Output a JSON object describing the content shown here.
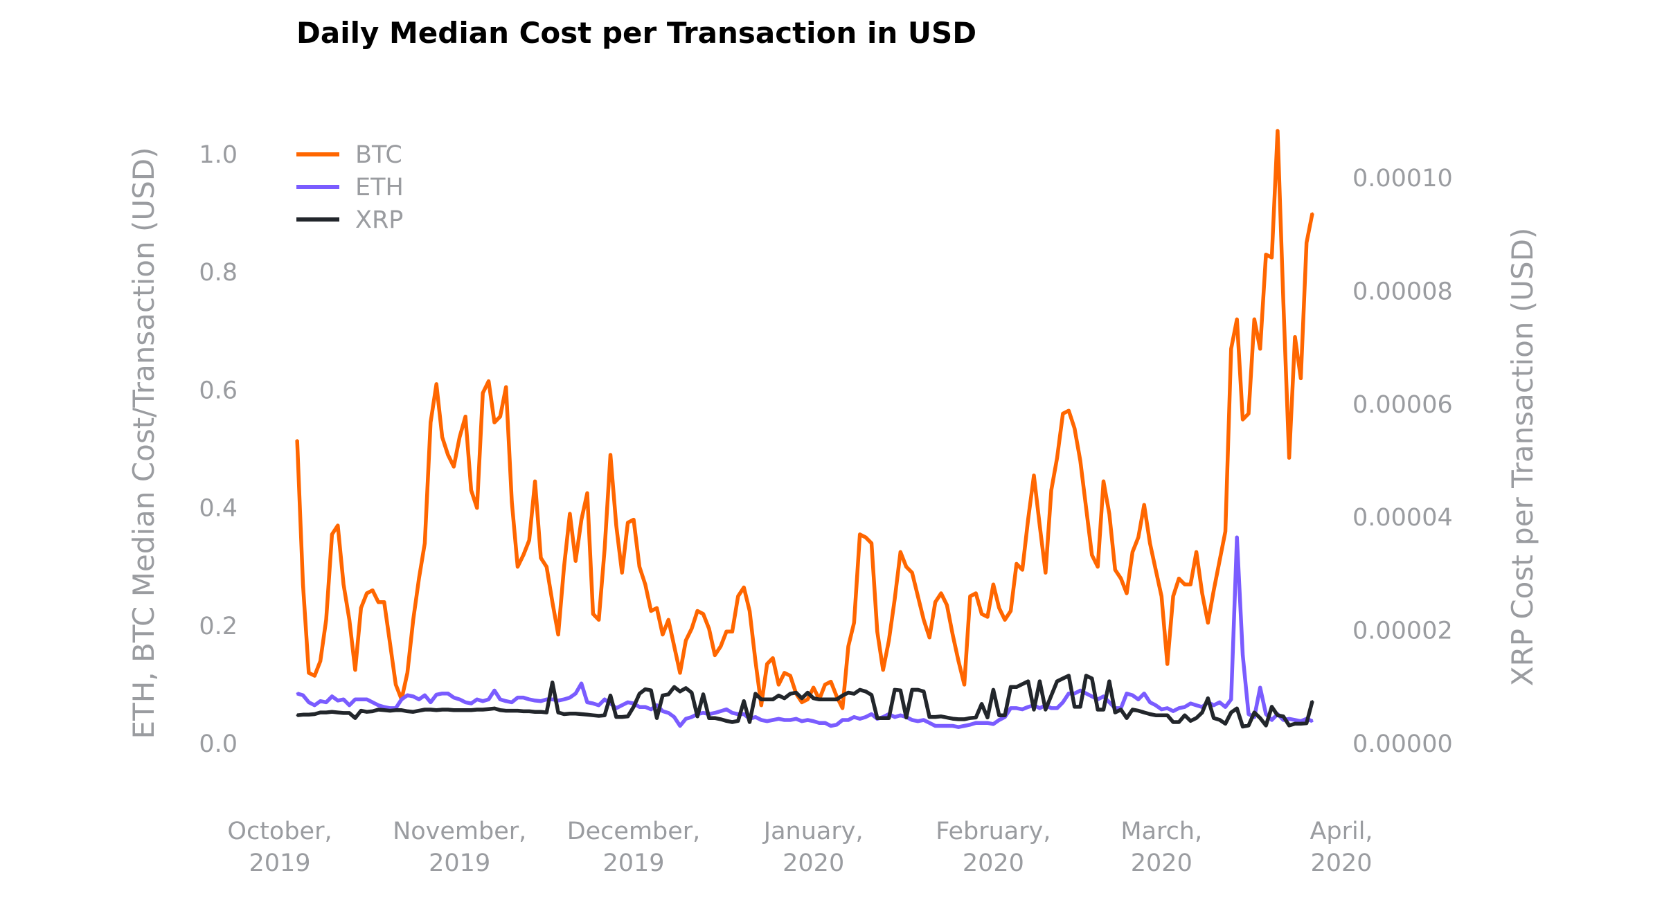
{
  "chart_data": {
    "type": "line",
    "title": "Daily Median Cost per Transaction in USD",
    "ylabel": "ETH, BTC Median Cost/Transaction (USD)",
    "y2label": "XRP Cost per Transaction (USD)",
    "ylim": [
      0,
      1.0
    ],
    "y2lim": [
      0,
      0.0001
    ],
    "xlim": [
      "2019-10-01",
      "2020-04-01"
    ],
    "grid": false,
    "legend_position": "top-left",
    "yticks": [
      "0.0",
      "0.2",
      "0.4",
      "0.6",
      "0.8",
      "1.0"
    ],
    "y2ticks": [
      "0.00000",
      "0.00002",
      "0.00004",
      "0.00006",
      "0.00008",
      "0.00010"
    ],
    "xticks": [
      {
        "date": "2019-10-01",
        "line1": "October,",
        "line2": "2019"
      },
      {
        "date": "2019-11-01",
        "line1": "November,",
        "line2": "2019"
      },
      {
        "date": "2019-12-01",
        "line1": "December,",
        "line2": "2019"
      },
      {
        "date": "2020-01-01",
        "line1": "January,",
        "line2": "2020"
      },
      {
        "date": "2020-02-01",
        "line1": "February,",
        "line2": "2020"
      },
      {
        "date": "2020-03-01",
        "line1": "March,",
        "line2": "2020"
      },
      {
        "date": "2020-04-01",
        "line1": "April,",
        "line2": "2020"
      }
    ],
    "x": [
      "2019-10-04",
      "2019-10-05",
      "2019-10-06",
      "2019-10-07",
      "2019-10-08",
      "2019-10-09",
      "2019-10-10",
      "2019-10-11",
      "2019-10-12",
      "2019-10-13",
      "2019-10-14",
      "2019-10-15",
      "2019-10-16",
      "2019-10-17",
      "2019-10-18",
      "2019-10-19",
      "2019-10-20",
      "2019-10-21",
      "2019-10-22",
      "2019-10-23",
      "2019-10-24",
      "2019-10-25",
      "2019-10-26",
      "2019-10-27",
      "2019-10-28",
      "2019-10-29",
      "2019-10-30",
      "2019-10-31",
      "2019-11-01",
      "2019-11-02",
      "2019-11-03",
      "2019-11-04",
      "2019-11-05",
      "2019-11-06",
      "2019-11-07",
      "2019-11-08",
      "2019-11-09",
      "2019-11-10",
      "2019-11-11",
      "2019-11-12",
      "2019-11-13",
      "2019-11-14",
      "2019-11-15",
      "2019-11-16",
      "2019-11-17",
      "2019-11-18",
      "2019-11-19",
      "2019-11-20",
      "2019-11-21",
      "2019-11-22",
      "2019-11-23",
      "2019-11-24",
      "2019-11-25",
      "2019-11-26",
      "2019-11-27",
      "2019-11-28",
      "2019-11-29",
      "2019-11-30",
      "2019-12-01",
      "2019-12-02",
      "2019-12-03",
      "2019-12-04",
      "2019-12-05",
      "2019-12-06",
      "2019-12-07",
      "2019-12-08",
      "2019-12-09",
      "2019-12-10",
      "2019-12-11",
      "2019-12-12",
      "2019-12-13",
      "2019-12-14",
      "2019-12-15",
      "2019-12-16",
      "2019-12-17",
      "2019-12-18",
      "2019-12-19",
      "2019-12-20",
      "2019-12-21",
      "2019-12-22",
      "2019-12-23",
      "2019-12-24",
      "2019-12-25",
      "2019-12-26",
      "2019-12-27",
      "2019-12-28",
      "2019-12-29",
      "2019-12-30",
      "2019-12-31",
      "2020-01-01",
      "2020-01-02",
      "2020-01-03",
      "2020-01-04",
      "2020-01-05",
      "2020-01-06",
      "2020-01-07",
      "2020-01-08",
      "2020-01-09",
      "2020-01-10",
      "2020-01-11",
      "2020-01-12",
      "2020-01-13",
      "2020-01-14",
      "2020-01-15",
      "2020-01-16",
      "2020-01-17",
      "2020-01-18",
      "2020-01-19",
      "2020-01-20",
      "2020-01-21",
      "2020-01-22",
      "2020-01-23",
      "2020-01-24",
      "2020-01-25",
      "2020-01-26",
      "2020-01-27",
      "2020-01-28",
      "2020-01-29",
      "2020-01-30",
      "2020-01-31",
      "2020-02-01",
      "2020-02-02",
      "2020-02-03",
      "2020-02-04",
      "2020-02-05",
      "2020-02-06",
      "2020-02-07",
      "2020-02-08",
      "2020-02-09",
      "2020-02-10",
      "2020-02-11",
      "2020-02-12",
      "2020-02-13",
      "2020-02-14",
      "2020-02-15",
      "2020-02-16",
      "2020-02-17",
      "2020-02-18",
      "2020-02-19",
      "2020-02-20",
      "2020-02-21",
      "2020-02-22",
      "2020-02-23",
      "2020-02-24",
      "2020-02-25",
      "2020-02-26",
      "2020-02-27",
      "2020-02-28",
      "2020-02-29",
      "2020-03-01",
      "2020-03-02",
      "2020-03-03",
      "2020-03-04",
      "2020-03-05",
      "2020-03-06",
      "2020-03-07",
      "2020-03-08",
      "2020-03-09",
      "2020-03-10",
      "2020-03-11",
      "2020-03-12",
      "2020-03-13",
      "2020-03-14",
      "2020-03-15",
      "2020-03-16",
      "2020-03-17",
      "2020-03-18",
      "2020-03-19",
      "2020-03-20",
      "2020-03-21",
      "2020-03-22",
      "2020-03-23",
      "2020-03-24",
      "2020-03-25",
      "2020-03-26",
      "2020-03-27"
    ],
    "series": [
      {
        "name": "BTC",
        "axis": "left",
        "color": "#ff6600",
        "values": [
          0.515,
          0.27,
          0.12,
          0.115,
          0.14,
          0.21,
          0.355,
          0.37,
          0.27,
          0.21,
          0.125,
          0.23,
          0.255,
          0.26,
          0.24,
          0.24,
          0.17,
          0.1,
          0.075,
          0.12,
          0.21,
          0.28,
          0.34,
          0.545,
          0.61,
          0.52,
          0.49,
          0.47,
          0.52,
          0.555,
          0.43,
          0.4,
          0.595,
          0.615,
          0.545,
          0.555,
          0.605,
          0.41,
          0.3,
          0.32,
          0.345,
          0.445,
          0.315,
          0.3,
          0.24,
          0.185,
          0.3,
          0.39,
          0.31,
          0.38,
          0.425,
          0.22,
          0.21,
          0.33,
          0.49,
          0.37,
          0.29,
          0.375,
          0.38,
          0.3,
          0.27,
          0.225,
          0.23,
          0.185,
          0.21,
          0.165,
          0.12,
          0.175,
          0.195,
          0.225,
          0.22,
          0.195,
          0.15,
          0.165,
          0.19,
          0.19,
          0.25,
          0.265,
          0.225,
          0.14,
          0.065,
          0.135,
          0.145,
          0.1,
          0.12,
          0.115,
          0.085,
          0.07,
          0.075,
          0.095,
          0.075,
          0.1,
          0.105,
          0.08,
          0.06,
          0.165,
          0.205,
          0.355,
          0.35,
          0.34,
          0.19,
          0.125,
          0.175,
          0.245,
          0.325,
          0.3,
          0.29,
          0.25,
          0.21,
          0.18,
          0.24,
          0.255,
          0.235,
          0.185,
          0.14,
          0.1,
          0.25,
          0.255,
          0.22,
          0.215,
          0.27,
          0.23,
          0.21,
          0.225,
          0.305,
          0.295,
          0.38,
          0.455,
          0.37,
          0.29,
          0.43,
          0.485,
          0.56,
          0.565,
          0.535,
          0.48,
          0.4,
          0.32,
          0.3,
          0.445,
          0.39,
          0.295,
          0.28,
          0.255,
          0.325,
          0.35,
          0.405,
          0.34,
          0.295,
          0.25,
          0.135,
          0.25,
          0.28,
          0.27,
          0.27,
          0.325,
          0.255,
          0.205,
          0.26,
          0.31,
          0.36,
          0.67,
          0.72,
          0.55,
          0.56,
          0.72,
          0.67,
          0.83,
          0.825,
          1.04,
          0.75,
          0.485,
          0.69,
          0.62,
          0.85,
          0.9
        ]
      },
      {
        "name": "ETH",
        "axis": "left",
        "color": "#7a5cff",
        "values": [
          0.085,
          0.082,
          0.07,
          0.065,
          0.072,
          0.07,
          0.08,
          0.073,
          0.075,
          0.065,
          0.075,
          0.075,
          0.075,
          0.07,
          0.065,
          0.062,
          0.06,
          0.06,
          0.075,
          0.082,
          0.08,
          0.075,
          0.082,
          0.07,
          0.083,
          0.085,
          0.085,
          0.078,
          0.075,
          0.07,
          0.068,
          0.075,
          0.072,
          0.075,
          0.09,
          0.075,
          0.072,
          0.07,
          0.078,
          0.078,
          0.075,
          0.073,
          0.072,
          0.075,
          0.075,
          0.073,
          0.075,
          0.078,
          0.085,
          0.102,
          0.07,
          0.068,
          0.065,
          0.075,
          0.068,
          0.06,
          0.065,
          0.07,
          0.068,
          0.062,
          0.062,
          0.058,
          0.065,
          0.055,
          0.052,
          0.045,
          0.03,
          0.042,
          0.045,
          0.05,
          0.052,
          0.05,
          0.052,
          0.055,
          0.058,
          0.052,
          0.05,
          0.05,
          0.042,
          0.045,
          0.04,
          0.038,
          0.04,
          0.042,
          0.04,
          0.04,
          0.042,
          0.038,
          0.04,
          0.038,
          0.035,
          0.035,
          0.03,
          0.032,
          0.04,
          0.04,
          0.045,
          0.042,
          0.045,
          0.05,
          0.042,
          0.045,
          0.05,
          0.045,
          0.048,
          0.045,
          0.04,
          0.038,
          0.04,
          0.035,
          0.03,
          0.03,
          0.03,
          0.03,
          0.028,
          0.03,
          0.032,
          0.035,
          0.035,
          0.035,
          0.033,
          0.04,
          0.045,
          0.06,
          0.06,
          0.058,
          0.062,
          0.065,
          0.06,
          0.065,
          0.06,
          0.06,
          0.07,
          0.085,
          0.085,
          0.09,
          0.085,
          0.08,
          0.075,
          0.08,
          0.07,
          0.06,
          0.06,
          0.085,
          0.082,
          0.075,
          0.085,
          0.07,
          0.065,
          0.058,
          0.06,
          0.055,
          0.06,
          0.062,
          0.068,
          0.065,
          0.062,
          0.07,
          0.065,
          0.07,
          0.062,
          0.075,
          0.35,
          0.15,
          0.05,
          0.045,
          0.095,
          0.05,
          0.04,
          0.05,
          0.04,
          0.042,
          0.04,
          0.038,
          0.042,
          0.038
        ]
      },
      {
        "name": "XRP",
        "axis": "right",
        "color": "#22262b",
        "values": [
          5e-06,
          5.1e-06,
          5.1e-06,
          5.2e-06,
          5.5e-06,
          5.5e-06,
          5.6e-06,
          5.5e-06,
          5.4e-06,
          5.4e-06,
          4.5e-06,
          5.8e-06,
          5.6e-06,
          5.7e-06,
          6e-06,
          5.9e-06,
          5.8e-06,
          5.9e-06,
          5.9e-06,
          5.7e-06,
          5.6e-06,
          5.8e-06,
          6e-06,
          6e-06,
          5.9e-06,
          6e-06,
          6e-06,
          5.9e-06,
          5.9e-06,
          5.9e-06,
          5.9e-06,
          6e-06,
          6e-06,
          6.1e-06,
          6.2e-06,
          5.9e-06,
          5.8e-06,
          5.8e-06,
          5.8e-06,
          5.7e-06,
          5.7e-06,
          5.6e-06,
          5.6e-06,
          5.5e-06,
          1.08e-05,
          5.5e-06,
          5.2e-06,
          5.3e-06,
          5.3e-06,
          5.2e-06,
          5.1e-06,
          5e-06,
          4.9e-06,
          5e-06,
          8.5e-06,
          4.7e-06,
          4.7e-06,
          4.8e-06,
          6.5e-06,
          8.8e-06,
          9.6e-06,
          9.4e-06,
          4.5e-06,
          8.5e-06,
          8.7e-06,
          1e-05,
          9.2e-06,
          9.8e-06,
          9e-06,
          4.8e-06,
          8.7e-06,
          4.5e-06,
          4.5e-06,
          4.3e-06,
          4e-06,
          3.8e-06,
          4e-06,
          7.5e-06,
          3.8e-06,
          8.8e-06,
          7.8e-06,
          7.8e-06,
          7.8e-06,
          8.5e-06,
          8e-06,
          8.8e-06,
          9e-06,
          8e-06,
          9e-06,
          8e-06,
          7.8e-06,
          7.8e-06,
          7.8e-06,
          7.8e-06,
          8.5e-06,
          9e-06,
          8.8e-06,
          9.5e-06,
          9.2e-06,
          8.6e-06,
          4.5e-06,
          4.5e-06,
          4.5e-06,
          9.5e-06,
          9.4e-06,
          4.6e-06,
          9.5e-06,
          9.5e-06,
          9.2e-06,
          4.7e-06,
          4.7e-06,
          4.8e-06,
          4.6e-06,
          4.4e-06,
          4.3e-06,
          4.3e-06,
          4.5e-06,
          4.6e-06,
          7e-06,
          4.6e-06,
          9.5e-06,
          5e-06,
          5e-06,
          1e-05,
          1e-05,
          1.05e-05,
          1.1e-05,
          6e-06,
          1.1e-05,
          6e-06,
          8.5e-06,
          1.1e-05,
          1.15e-05,
          1.2e-05,
          6.5e-06,
          6.5e-06,
          1.2e-05,
          1.15e-05,
          6e-06,
          6e-06,
          1.1e-05,
          5.5e-06,
          6e-06,
          4.5e-06,
          6e-06,
          5.8e-06,
          5.5e-06,
          5.2e-06,
          5e-06,
          5e-06,
          5e-06,
          3.8e-06,
          3.8e-06,
          5e-06,
          4e-06,
          4.5e-06,
          5.5e-06,
          8e-06,
          4.5e-06,
          4.2e-06,
          3.5e-06,
          5.5e-06,
          6.2e-06,
          3e-06,
          3.2e-06,
          5.5e-06,
          4.5e-06,
          3.2e-06,
          6.5e-06,
          5e-06,
          4.8e-06,
          3.2e-06,
          3.5e-06,
          3.5e-06,
          3.6e-06,
          7.5e-06
        ]
      }
    ]
  }
}
